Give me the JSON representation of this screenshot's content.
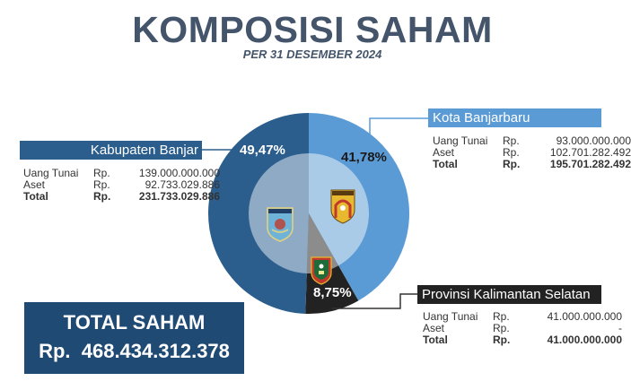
{
  "header": {
    "title": "KOMPOSISI SAHAM",
    "subtitle": "PER 31 DESEMBER 2024"
  },
  "colors": {
    "title": "#44546a",
    "kabupaten_banjar": "#2b5e8c",
    "kabupaten_banjar_inner": "#8faac4",
    "kota_banjarbaru": "#5b9bd5",
    "kota_banjarbaru_inner": "#a9cbe8",
    "provinsi_kalsel": "#222222",
    "provinsi_kalsel_inner": "#8c8c8c",
    "total_box": "#1f4a73"
  },
  "shareholders": [
    {
      "name": "Kabupaten Banjar",
      "percent_label": "49,47%",
      "emblem": "banjar-emblem-icon",
      "rows": [
        {
          "label": "Uang Tunai",
          "rp": "Rp.",
          "value": "139.000.000.000"
        },
        {
          "label": "Aset",
          "rp": "Rp.",
          "value": "92.733.029.886"
        },
        {
          "label": "Total",
          "rp": "Rp.",
          "value": "231.733.029.886"
        }
      ]
    },
    {
      "name": "Kota Banjarbaru",
      "percent_label": "41,78%",
      "emblem": "banjarbaru-emblem-icon",
      "rows": [
        {
          "label": "Uang Tunai",
          "rp": "Rp.",
          "value": "93.000.000.000"
        },
        {
          "label": "Aset",
          "rp": "Rp.",
          "value": "102.701.282.492"
        },
        {
          "label": "Total",
          "rp": "Rp.",
          "value": "195.701.282.492"
        }
      ]
    },
    {
      "name": "Provinsi Kalimantan Selatan",
      "percent_label": "8,75%",
      "emblem": "kalsel-emblem-icon",
      "rows": [
        {
          "label": "Uang Tunai",
          "rp": "Rp.",
          "value": "41.000.000.000"
        },
        {
          "label": "Aset",
          "rp": "Rp.",
          "value": "-"
        },
        {
          "label": "Total",
          "rp": "Rp.",
          "value": "41.000.000.000"
        }
      ]
    }
  ],
  "total": {
    "label": "TOTAL SAHAM",
    "value": "Rp.  468.434.312.378"
  },
  "chart_data": {
    "type": "pie",
    "title": "KOMPOSISI SAHAM",
    "subtitle": "PER 31 DESEMBER 2024",
    "categories": [
      "Kabupaten Banjar",
      "Kota Banjarbaru",
      "Provinsi Kalimantan Selatan"
    ],
    "values": [
      49.47,
      41.78,
      8.75
    ],
    "value_labels": [
      "49,47%",
      "41,78%",
      "8,75%"
    ],
    "amounts_rp": [
      231733029886,
      195701282492,
      41000000000
    ],
    "total_rp": 468434312378,
    "colors": [
      "#2b5e8c",
      "#5b9bd5",
      "#222222"
    ],
    "legend": "callout boxes with connector lines",
    "start_angle_deg": 0,
    "direction": "clockwise"
  }
}
